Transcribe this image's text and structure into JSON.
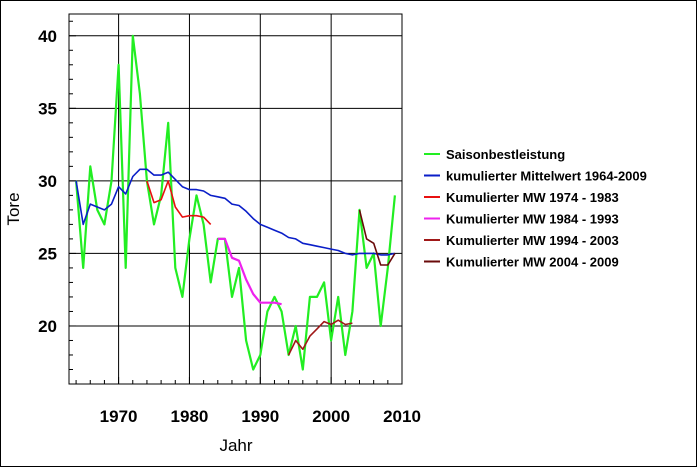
{
  "chart_data": {
    "type": "line",
    "title": "",
    "xlabel": "Jahr",
    "ylabel": "Tore",
    "xlim": [
      1963,
      2010
    ],
    "ylim": [
      16,
      41.5
    ],
    "xticks": [
      1970,
      1980,
      1990,
      2000,
      2010
    ],
    "yticks": [
      20,
      25,
      30,
      35,
      40
    ],
    "grid": true,
    "legend_position": "right",
    "series": [
      {
        "name": "Saisonbestleistung",
        "color": "#22ee22",
        "width": 2.2,
        "x": [
          1964,
          1965,
          1966,
          1967,
          1968,
          1969,
          1970,
          1971,
          1972,
          1973,
          1974,
          1975,
          1976,
          1977,
          1978,
          1979,
          1980,
          1981,
          1982,
          1983,
          1984,
          1985,
          1986,
          1987,
          1988,
          1989,
          1990,
          1991,
          1992,
          1993,
          1994,
          1995,
          1996,
          1997,
          1998,
          1999,
          2000,
          2001,
          2002,
          2003,
          2004,
          2005,
          2006,
          2007,
          2008,
          2009
        ],
        "y": [
          30,
          24,
          31,
          28,
          27,
          30,
          38,
          24,
          40,
          36,
          30,
          27,
          29,
          34,
          24,
          22,
          26,
          29,
          27,
          23,
          26,
          26,
          22,
          24,
          19,
          17,
          18,
          21,
          22,
          21,
          18,
          20,
          17,
          22,
          22,
          23,
          19,
          22,
          18,
          21,
          28,
          24,
          25,
          20,
          24,
          29
        ]
      },
      {
        "name": "kumulierter Mittelwert 1964-2009",
        "color": "#0a1ec8",
        "width": 1.6,
        "x": [
          1964,
          1965,
          1966,
          1967,
          1968,
          1969,
          1970,
          1971,
          1972,
          1973,
          1974,
          1975,
          1976,
          1977,
          1978,
          1979,
          1980,
          1981,
          1982,
          1983,
          1984,
          1985,
          1986,
          1987,
          1988,
          1989,
          1990,
          1991,
          1992,
          1993,
          1994,
          1995,
          1996,
          1997,
          1998,
          1999,
          2000,
          2001,
          2002,
          2003,
          2004,
          2005,
          2006,
          2007,
          2008,
          2009
        ],
        "y": [
          30,
          27,
          28.4,
          28.2,
          28.0,
          28.4,
          29.6,
          29.1,
          30.3,
          30.8,
          30.8,
          30.4,
          30.4,
          30.6,
          30.1,
          29.6,
          29.4,
          29.4,
          29.3,
          29.0,
          28.9,
          28.8,
          28.4,
          28.3,
          27.9,
          27.4,
          27.0,
          26.8,
          26.6,
          26.4,
          26.1,
          26.0,
          25.7,
          25.6,
          25.5,
          25.4,
          25.3,
          25.2,
          25.0,
          24.9,
          25.0,
          25.0,
          25.0,
          24.9,
          24.9,
          25.0
        ]
      },
      {
        "name": "Kumulierter MW 1974 - 1983",
        "color": "#e81010",
        "width": 1.6,
        "x": [
          1974,
          1975,
          1976,
          1977,
          1978,
          1979,
          1980,
          1981,
          1982,
          1983
        ],
        "y": [
          30,
          28.5,
          28.7,
          30,
          28.2,
          27.5,
          27.6,
          27.6,
          27.5,
          27.0
        ]
      },
      {
        "name": "Kumulierter MW 1984 - 1993",
        "color": "#ee22ee",
        "width": 2.2,
        "x": [
          1984,
          1985,
          1986,
          1987,
          1988,
          1989,
          1990,
          1991,
          1992,
          1993
        ],
        "y": [
          26,
          26,
          24.7,
          24.5,
          23.2,
          22.2,
          21.6,
          21.6,
          21.6,
          21.5
        ]
      },
      {
        "name": "Kumulierter MW 1994 - 2003",
        "color": "#a01818",
        "width": 1.6,
        "x": [
          1994,
          1995,
          1996,
          1997,
          1998,
          1999,
          2000,
          2001,
          2002,
          2003
        ],
        "y": [
          18,
          19,
          18.4,
          19.3,
          19.8,
          20.3,
          20.1,
          20.4,
          20.1,
          20.2
        ]
      },
      {
        "name": "Kumulierter MW 2004 - 2009",
        "color": "#6a0a0a",
        "width": 1.6,
        "x": [
          2004,
          2005,
          2006,
          2007,
          2008,
          2009
        ],
        "y": [
          28,
          26,
          25.7,
          24.2,
          24.2,
          25
        ]
      }
    ]
  }
}
